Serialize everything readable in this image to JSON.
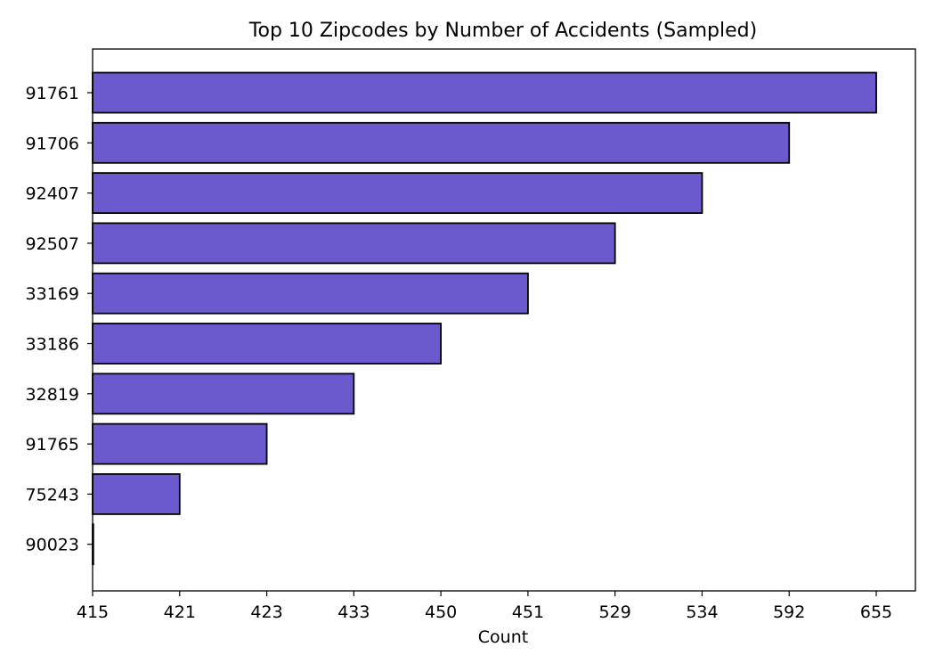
{
  "chart_data": {
    "type": "bar",
    "orientation": "horizontal",
    "title": "Top 10 Zipcodes by Number of Accidents (Sampled)",
    "xlabel": "Count",
    "ylabel": "",
    "categories": [
      "91761",
      "91706",
      "92407",
      "92507",
      "33169",
      "33186",
      "32819",
      "91765",
      "75243",
      "90023"
    ],
    "values": [
      655,
      592,
      534,
      529,
      451,
      450,
      433,
      423,
      421,
      415
    ],
    "x_tick_labels": [
      "415",
      "421",
      "423",
      "433",
      "450",
      "451",
      "529",
      "534",
      "592",
      "655"
    ],
    "x_axis_scale": "categorical (sorted unique counts, equally spaced)",
    "grid": false,
    "legend": "none",
    "bar_color": "#6a5acd",
    "edge_color": "#000000"
  }
}
